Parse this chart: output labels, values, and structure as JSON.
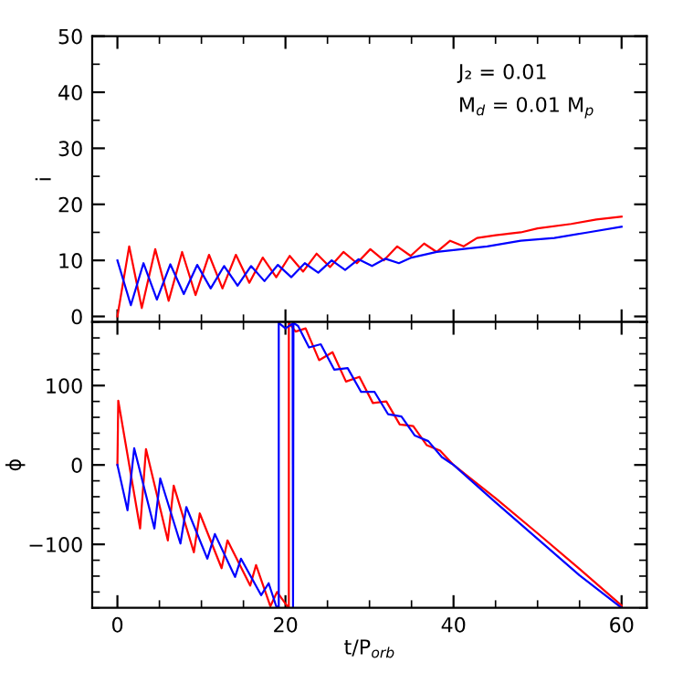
{
  "chart_data": [
    {
      "type": "line",
      "ylabel": "i",
      "xlim": [
        -3,
        63
      ],
      "ylim": [
        -1,
        50
      ],
      "xticks": [
        0,
        20,
        40,
        60
      ],
      "yticks": [
        0,
        10,
        20,
        30,
        40,
        50
      ],
      "tick_labels": "y",
      "grid": false,
      "annotations": [
        "J₂ = 0.01",
        "M$_{d}$ = 0.01 M$_{p}$"
      ],
      "series": [
        {
          "color": "#ff0000",
          "x": [
            0,
            1.4,
            2.9,
            4.5,
            6.1,
            7.7,
            9.3,
            10.9,
            12.5,
            14.1,
            15.7,
            17.3,
            18.9,
            20.5,
            22.1,
            23.7,
            25.3,
            26.9,
            28.5,
            30.1,
            31.7,
            33.3,
            34.9,
            36.5,
            38.0,
            39.6,
            41.2,
            42.8,
            45,
            48,
            50,
            54,
            57,
            60
          ],
          "values": [
            0,
            12.5,
            1.5,
            12,
            2.8,
            11.5,
            3.8,
            11,
            5,
            11,
            6,
            10.5,
            7,
            10.8,
            8,
            11.2,
            8.8,
            11.5,
            9.5,
            12,
            10,
            12.5,
            10.8,
            13,
            11.5,
            13.5,
            12.5,
            14,
            14.5,
            15,
            15.7,
            16.5,
            17.3,
            17.8
          ]
        },
        {
          "color": "#0000ff",
          "x": [
            0,
            1.6,
            3.1,
            4.7,
            6.3,
            7.9,
            9.5,
            11.1,
            12.7,
            14.3,
            15.9,
            17.5,
            19.1,
            20.7,
            22.3,
            23.9,
            25.5,
            27.1,
            28.7,
            30.3,
            31.9,
            33.5,
            35,
            38,
            41,
            44,
            48,
            52,
            56,
            60
          ],
          "values": [
            10,
            2,
            9.5,
            3,
            9.3,
            4,
            9.2,
            5,
            9,
            5.5,
            9,
            6.3,
            9.2,
            7,
            9.5,
            7.8,
            10,
            8.3,
            10.2,
            9,
            10.3,
            9.5,
            10.5,
            11.5,
            12,
            12.5,
            13.5,
            14,
            15,
            16
          ]
        }
      ]
    },
    {
      "type": "line",
      "xlabel": "t/P$_{orb}$",
      "ylabel": "ϕ",
      "xlim": [
        -3,
        63
      ],
      "ylim": [
        -180,
        180
      ],
      "xticks": [
        0,
        20,
        40,
        60
      ],
      "yticks": [
        -100,
        0,
        100
      ],
      "grid": false,
      "series": [
        {
          "color": "#ff0000",
          "x": [
            0,
            0.1,
            2.7,
            3.4,
            6.0,
            6.7,
            9.1,
            9.8,
            12.4,
            13.1,
            15.8,
            16.5,
            18.2,
            19.0,
            20.3,
            20.4,
            20.4,
            21.2,
            22.4,
            24.0,
            25.6,
            27.2,
            28.8,
            30.4,
            32.0,
            33.6,
            35.2,
            36.8,
            38.4,
            40,
            45,
            50,
            55,
            60
          ],
          "values": [
            0,
            81,
            -80,
            20,
            -95,
            -26,
            -110,
            -61,
            -130,
            -95,
            -152,
            -126,
            -178,
            -160,
            -179,
            -179,
            179,
            168,
            172,
            132,
            142,
            105,
            111,
            78,
            80,
            51,
            49,
            25,
            18,
            0,
            -42,
            -86,
            -131,
            -177
          ]
        },
        {
          "color": "#0000ff",
          "x": [
            0,
            1.2,
            2.0,
            4.4,
            5.1,
            7.5,
            8.2,
            10.7,
            11.6,
            14.0,
            14.7,
            17.1,
            18.0,
            18.9,
            19.2,
            19.2,
            20.0,
            20.85,
            20.9,
            20.95,
            21.5,
            22.8,
            24.2,
            25.8,
            27.4,
            29.0,
            30.6,
            32.2,
            33.8,
            35.4,
            37.0,
            38.6,
            40,
            45,
            50,
            55,
            60
          ],
          "values": [
            0,
            -57,
            21,
            -80,
            -17,
            -99,
            -53,
            -118,
            -87,
            -141,
            -118,
            -164,
            -149,
            -178,
            -179,
            179,
            172,
            178,
            -179,
            179,
            175,
            148,
            152,
            120,
            122,
            92,
            92,
            64,
            61,
            37,
            30,
            10,
            0,
            -47,
            -93,
            -139,
            -180
          ]
        }
      ]
    }
  ]
}
